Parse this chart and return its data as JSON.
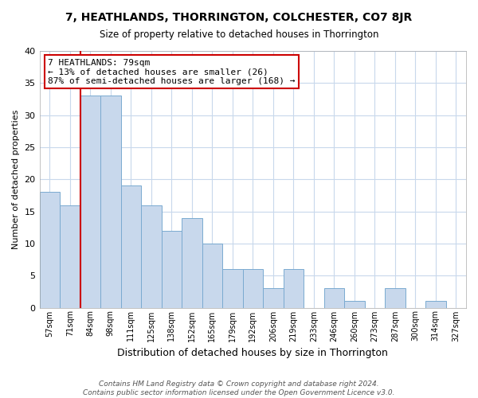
{
  "title": "7, HEATHLANDS, THORRINGTON, COLCHESTER, CO7 8JR",
  "subtitle": "Size of property relative to detached houses in Thorrington",
  "xlabel": "Distribution of detached houses by size in Thorrington",
  "ylabel": "Number of detached properties",
  "bar_labels": [
    "57sqm",
    "71sqm",
    "84sqm",
    "98sqm",
    "111sqm",
    "125sqm",
    "138sqm",
    "152sqm",
    "165sqm",
    "179sqm",
    "192sqm",
    "206sqm",
    "219sqm",
    "233sqm",
    "246sqm",
    "260sqm",
    "273sqm",
    "287sqm",
    "300sqm",
    "314sqm",
    "327sqm"
  ],
  "bar_values": [
    18,
    16,
    33,
    33,
    19,
    16,
    12,
    14,
    10,
    6,
    6,
    3,
    6,
    0,
    3,
    1,
    0,
    3,
    0,
    1,
    0
  ],
  "bar_color": "#c8d8ec",
  "bar_edge_color": "#7aaad0",
  "annotation_text": "7 HEATHLANDS: 79sqm\n← 13% of detached houses are smaller (26)\n87% of semi-detached houses are larger (168) →",
  "annotation_box_color": "#ffffff",
  "annotation_box_edge_color": "#cc0000",
  "ref_line_color": "#cc0000",
  "ylim": [
    0,
    40
  ],
  "yticks": [
    0,
    5,
    10,
    15,
    20,
    25,
    30,
    35,
    40
  ],
  "footer_line1": "Contains HM Land Registry data © Crown copyright and database right 2024.",
  "footer_line2": "Contains public sector information licensed under the Open Government Licence v3.0.",
  "bg_color": "#ffffff",
  "grid_color": "#c8d8ec"
}
